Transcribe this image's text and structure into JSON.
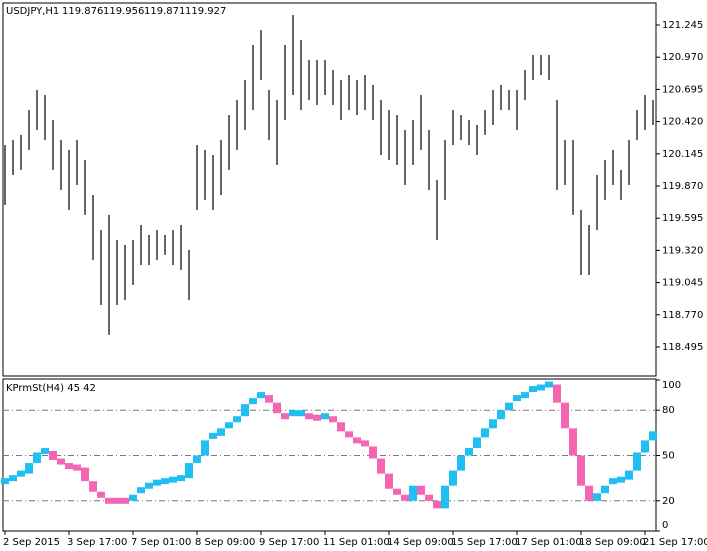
{
  "chart_data": [
    {
      "type": "range-bar",
      "title": "USDJPY,H1",
      "quote": [
        119.876,
        119.956,
        119.871,
        119.927
      ],
      "color": "#000000",
      "xlim": [
        -0.25,
        81.375
      ],
      "ylim": [
        118.247,
        121.433
      ],
      "yticks": [
        121.245,
        {
          "value": 120.97,
          "label": "120.970"
        },
        120.695,
        {
          "value": 120.42,
          "label": "120.420"
        },
        120.145,
        {
          "value": 119.87,
          "label": "119.870"
        },
        119.595,
        {
          "value": 119.32,
          "label": "119.320"
        },
        119.045,
        {
          "value": 118.77,
          "label": "118.770"
        },
        118.495
      ],
      "high": [
        120.22,
        120.263,
        120.306,
        120.519,
        120.69,
        120.647,
        120.434,
        120.263,
        120.178,
        120.263,
        120.092,
        119.793,
        119.494,
        119.623,
        119.409,
        119.366,
        119.409,
        119.537,
        119.452,
        119.494,
        119.452,
        119.494,
        119.537,
        119.324,
        120.22,
        120.178,
        120.135,
        120.263,
        120.476,
        120.605,
        120.775,
        121.074,
        121.202,
        120.69,
        120.605,
        121.074,
        121.33,
        121.117,
        120.946,
        120.946,
        120.946,
        120.861,
        120.775,
        120.818,
        120.775,
        120.818,
        120.733,
        120.605,
        120.519,
        120.476,
        120.348,
        120.434,
        120.647,
        120.348,
        119.921,
        120.263,
        120.519,
        120.476,
        120.434,
        120.391,
        120.519,
        120.69,
        120.733,
        120.69,
        120.69,
        120.861,
        120.989,
        120.989,
        120.989,
        120.605,
        120.263,
        120.263,
        119.665,
        119.537,
        119.964,
        120.092,
        120.178,
        120.007,
        120.263,
        120.519,
        120.647,
        120.605
      ],
      "low": [
        119.708,
        119.964,
        120.007,
        120.178,
        120.348,
        120.263,
        120.007,
        119.836,
        119.665,
        119.879,
        119.623,
        119.238,
        118.854,
        118.598,
        118.854,
        118.897,
        119.025,
        119.195,
        119.195,
        119.238,
        119.281,
        119.195,
        119.153,
        118.897,
        119.665,
        119.751,
        119.665,
        119.793,
        120.007,
        120.178,
        120.348,
        120.519,
        120.775,
        120.263,
        120.05,
        120.434,
        120.647,
        120.519,
        120.605,
        120.562,
        120.647,
        120.562,
        120.434,
        120.519,
        120.476,
        120.519,
        120.434,
        120.135,
        120.092,
        120.05,
        119.879,
        120.05,
        120.178,
        119.836,
        119.409,
        119.751,
        120.22,
        120.263,
        120.22,
        120.135,
        120.306,
        120.391,
        120.519,
        120.519,
        120.348,
        120.605,
        120.775,
        120.818,
        120.775,
        119.836,
        119.879,
        119.623,
        119.11,
        119.11,
        119.494,
        119.751,
        119.879,
        119.751,
        119.879,
        120.263,
        120.348,
        120.391
      ]
    },
    {
      "type": "step",
      "title": "KPrmSt(H4) 45 42",
      "xlim": [
        -0.25,
        81.375
      ],
      "ylim": [
        0,
        100
      ],
      "yticks": [
        0,
        20,
        50,
        80,
        100
      ],
      "levels": [
        20,
        50,
        80
      ],
      "xticks": [
        {
          "value": 0,
          "label": "2 Sep 2015"
        },
        {
          "value": 8,
          "label": "3 Sep 17:00"
        },
        {
          "value": 16,
          "label": "7 Sep 01:00"
        },
        {
          "value": 24,
          "label": "8 Sep 09:00"
        },
        {
          "value": 32,
          "label": "9 Sep 17:00"
        },
        {
          "value": 40,
          "label": "11 Sep 01:00"
        },
        {
          "value": 48,
          "label": "14 Sep 09:00"
        },
        {
          "value": 56,
          "label": "15 Sep 17:00"
        },
        {
          "value": 64,
          "label": "17 Sep 01:00"
        },
        {
          "value": 72,
          "label": "18 Sep 09:00"
        },
        {
          "value": 80,
          "label": "21 Sep 17:00"
        }
      ],
      "series": [
        {
          "color": "#1fbff4",
          "values": [
            33,
            35,
            38,
            45,
            52,
            53,
            null,
            null,
            null,
            null,
            null,
            null,
            null,
            null,
            null,
            null,
            24,
            27,
            30,
            32,
            33,
            34,
            35,
            45,
            50,
            60,
            63,
            68,
            72,
            76,
            84,
            88,
            90,
            null,
            null,
            null,
            78,
            78,
            null,
            null,
            76,
            null,
            null,
            null,
            null,
            null,
            null,
            null,
            null,
            null,
            null,
            30,
            null,
            null,
            null,
            30,
            40,
            50,
            55,
            62,
            68,
            74,
            80,
            85,
            88,
            92,
            94,
            95,
            97,
            null,
            null,
            null,
            null,
            null,
            25,
            30,
            33,
            34,
            40,
            52,
            60,
            66
          ]
        },
        {
          "color": "#f466b3",
          "values": [
            null,
            null,
            null,
            null,
            null,
            null,
            47,
            46,
            43,
            42,
            33,
            26,
            22,
            20,
            20,
            20,
            null,
            null,
            null,
            null,
            null,
            null,
            null,
            null,
            null,
            null,
            null,
            null,
            null,
            null,
            null,
            null,
            null,
            85,
            78,
            76,
            null,
            null,
            76,
            75,
            null,
            72,
            66,
            62,
            60,
            56,
            48,
            38,
            28,
            24,
            20,
            null,
            24,
            20,
            15,
            null,
            null,
            null,
            null,
            null,
            null,
            null,
            null,
            null,
            null,
            null,
            null,
            null,
            null,
            85,
            68,
            50,
            30,
            20,
            null,
            null,
            null,
            null,
            null,
            null,
            null,
            null
          ]
        }
      ]
    }
  ]
}
